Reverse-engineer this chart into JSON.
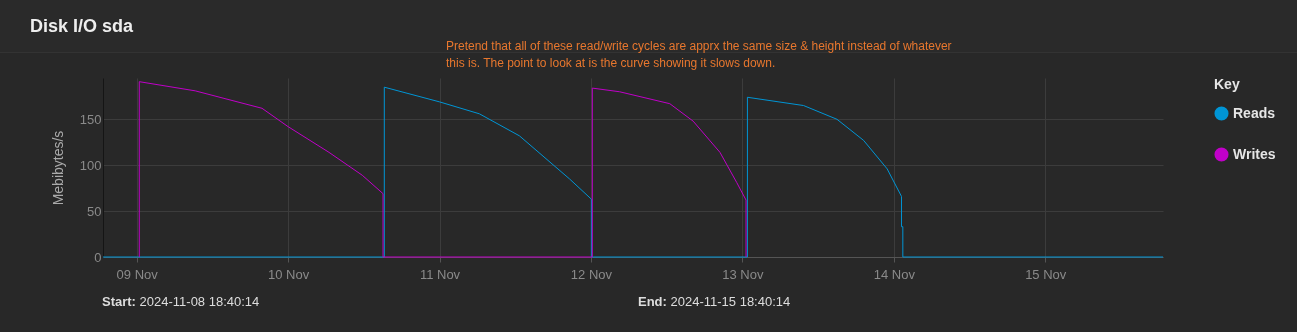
{
  "chart_data": {
    "type": "line",
    "title": "Disk I/O sda",
    "ylabel": "Mebibytes/s",
    "legend_title": "Key",
    "legend": "top right",
    "grid": true,
    "marker": "none",
    "line_style": "solid",
    "annotations": [
      "Pretend that all of these read/write cycles are apprx the same size & height instead of whatever this is. The point to look at is the curve showing it slows down.",
      "Start: 2024-11-08 18:40:14",
      "End: 2024-11-15 18:40:14"
    ],
    "xlim": [
      "2024-11-08T18:40",
      "2024-11-15T18:40"
    ],
    "xticks": [
      {
        "value": "2024-11-09",
        "label": "09 Nov"
      },
      {
        "value": "2024-11-10",
        "label": "10 Nov"
      },
      {
        "value": "2024-11-11",
        "label": "11 Nov"
      },
      {
        "value": "2024-11-12",
        "label": "12 Nov"
      },
      {
        "value": "2024-11-13",
        "label": "13 Nov"
      },
      {
        "value": "2024-11-14",
        "label": "14 Nov"
      },
      {
        "value": "2024-11-15",
        "label": "15 Nov"
      }
    ],
    "ylim": [
      0,
      195
    ],
    "yticks": [
      0,
      50,
      100,
      150
    ],
    "series": [
      {
        "name": "Reads",
        "color": "#0095d5",
        "x": [
          "2024-11-08T18:40",
          "2024-11-10T15:15",
          "2024-11-10T15:15",
          "2024-11-11T00:00",
          "2024-11-11T06:19",
          "2024-11-11T12:40",
          "2024-11-11T20:37",
          "2024-11-12T00:04",
          "2024-11-12T00:04",
          "2024-11-13T00:48",
          "2024-11-13T00:48",
          "2024-11-13T09:42",
          "2024-11-13T15:00",
          "2024-11-13T19:13",
          "2024-11-13T22:57",
          "2024-11-14T01:13",
          "2024-11-14T01:13",
          "2024-11-14T01:26",
          "2024-11-14T01:26",
          "2024-11-15T18:40"
        ],
        "values": [
          0,
          0,
          185,
          169,
          156,
          132,
          85,
          63,
          0,
          0,
          174,
          165,
          150,
          127,
          96,
          66,
          33,
          33,
          0,
          0
        ]
      },
      {
        "name": "Writes",
        "color": "#c000c8",
        "x": [
          "2024-11-09T00:25",
          "2024-11-09T00:25",
          "2024-11-09T09:17",
          "2024-11-09T19:52",
          "2024-11-10T00:00",
          "2024-11-10T06:29",
          "2024-11-10T11:46",
          "2024-11-10T15:03",
          "2024-11-10T15:03",
          "2024-11-12T00:13",
          "2024-11-12T00:13",
          "2024-11-12T04:33",
          "2024-11-12T12:30",
          "2024-11-12T16:12",
          "2024-11-12T20:27",
          "2024-11-12T23:07",
          "2024-11-13T00:35",
          "2024-11-13T00:35"
        ],
        "values": [
          0,
          191,
          181,
          162,
          142,
          114,
          89,
          69,
          0,
          0,
          184,
          180,
          167,
          148,
          114,
          81,
          62,
          0
        ]
      }
    ]
  }
}
